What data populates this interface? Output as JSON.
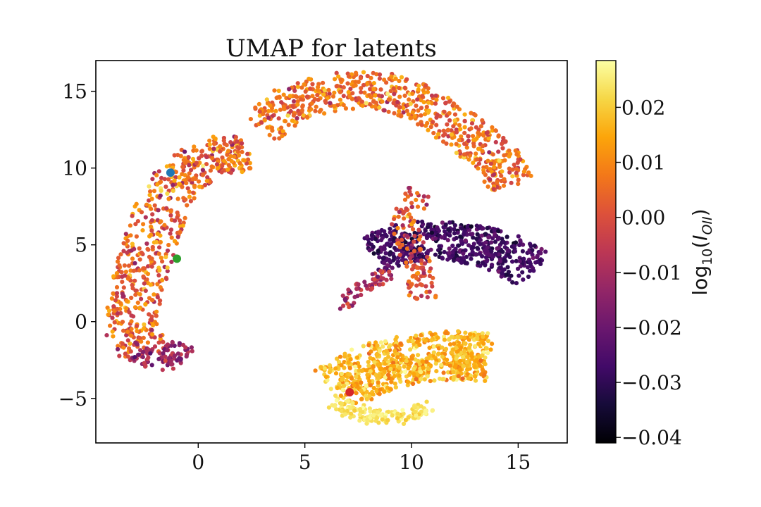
{
  "chart_data": {
    "type": "scatter",
    "title": "UMAP for latents",
    "xlabel": "",
    "ylabel": "",
    "xlim": [
      -4.8,
      17.3
    ],
    "ylim": [
      -7.9,
      17.0
    ],
    "x_ticks": [
      0,
      5,
      10,
      15
    ],
    "y_ticks": [
      -5,
      0,
      5,
      10,
      15
    ],
    "colormap": "inferno",
    "color_range": [
      -0.041,
      0.0285
    ],
    "colorbar": {
      "label": "log",
      "label_subscript": "10",
      "label_paren_open": "(",
      "label_var": "I",
      "label_var_subscript": "OII",
      "label_paren_close": ")",
      "ticks": [
        0.02,
        0.01,
        0.0,
        -0.01,
        -0.02,
        -0.03,
        -0.04
      ],
      "tick_labels": [
        "0.02",
        "0.01",
        "0.00",
        "−0.01",
        "−0.02",
        "−0.03",
        "−0.04"
      ]
    },
    "clusters": [
      {
        "description": "upper arc band",
        "path": [
          [
            3.0,
            12.8
          ],
          [
            4.5,
            14.3
          ],
          [
            6.5,
            15.0
          ],
          [
            8.5,
            15.1
          ],
          [
            10.5,
            14.2
          ],
          [
            12.5,
            12.3
          ],
          [
            13.8,
            10.8
          ],
          [
            14.8,
            9.0
          ]
        ],
        "width": 2.4,
        "n": 650,
        "mean_value": 0.006,
        "spread": 0.012
      },
      {
        "description": "left band",
        "path": [
          [
            2.2,
            11.0
          ],
          [
            0.6,
            10.8
          ],
          [
            -1.0,
            9.3
          ],
          [
            -1.8,
            7.0
          ],
          [
            -2.4,
            4.5
          ],
          [
            -2.9,
            2.0
          ],
          [
            -3.2,
            -0.3
          ],
          [
            -2.6,
            -2.0
          ]
        ],
        "width": 2.5,
        "n": 600,
        "mean_value": 0.004,
        "spread": 0.013
      },
      {
        "description": "left band lower tip",
        "path": [
          [
            -3.0,
            -2.0
          ],
          [
            -1.6,
            -2.6
          ],
          [
            -0.7,
            -1.6
          ]
        ],
        "width": 1.3,
        "n": 90,
        "mean_value": -0.012,
        "spread": 0.01
      },
      {
        "description": "right middle dark blob",
        "path": [
          [
            8.2,
            4.4
          ],
          [
            10.0,
            5.2
          ],
          [
            12.0,
            5.3
          ],
          [
            14.0,
            4.7
          ],
          [
            15.7,
            3.4
          ]
        ],
        "width": 2.6,
        "n": 560,
        "mean_value": -0.027,
        "spread": 0.006
      },
      {
        "description": "lower left streak",
        "path": [
          [
            6.8,
            1.0
          ],
          [
            7.8,
            2.4
          ],
          [
            9.0,
            3.1
          ]
        ],
        "width": 0.9,
        "n": 60,
        "mean_value": -0.01,
        "spread": 0.01
      },
      {
        "description": "descending connector",
        "path": [
          [
            10.3,
            8.5
          ],
          [
            9.7,
            6.5
          ],
          [
            10.3,
            3.4
          ],
          [
            10.6,
            1.3
          ]
        ],
        "width": 1.3,
        "n": 130,
        "mean_value": 0.0,
        "spread": 0.012
      },
      {
        "description": "bottom bright blob",
        "path": [
          [
            6.5,
            -4.4
          ],
          [
            8.3,
            -3.0
          ],
          [
            10.0,
            -2.4
          ],
          [
            12.2,
            -2.2
          ],
          [
            13.5,
            -2.3
          ]
        ],
        "width": 3.2,
        "n": 720,
        "mean_value": 0.017,
        "spread": 0.008
      },
      {
        "description": "bottom blob bright edge",
        "path": [
          [
            6.2,
            -5.2
          ],
          [
            7.6,
            -6.1
          ],
          [
            9.2,
            -6.3
          ],
          [
            10.8,
            -5.7
          ]
        ],
        "width": 1.0,
        "n": 140,
        "mean_value": 0.024,
        "spread": 0.004
      }
    ],
    "highlight_points": [
      {
        "x": -1.3,
        "y": 9.7,
        "color": "#1f77b4"
      },
      {
        "x": -1.0,
        "y": 4.1,
        "color": "#2ca02c"
      },
      {
        "x": 7.1,
        "y": -4.6,
        "color": "#d62728"
      }
    ]
  }
}
